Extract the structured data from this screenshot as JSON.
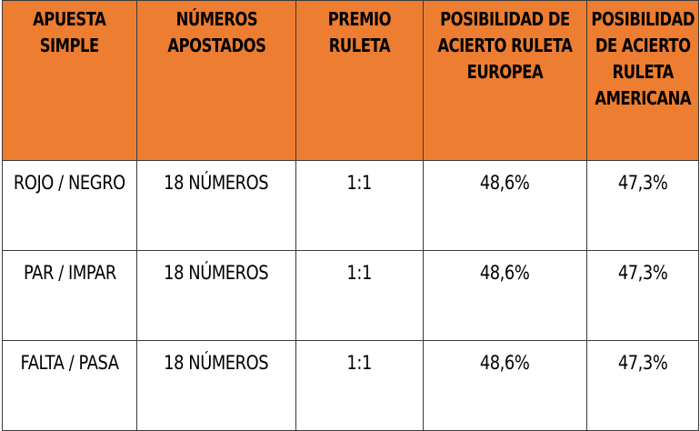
{
  "table": {
    "headers": [
      "APUESTA SIMPLE",
      "NÚMEROS APOSTADOS",
      "PREMIO RULETA",
      "POSIBILIDAD DE ACIERTO RULETA EUROPEA",
      "POSIBILIDAD DE ACIERTO RULETA AMERICANA"
    ],
    "rows": [
      [
        "ROJO / NEGRO",
        "18 NÚMEROS",
        "1:1",
        "48,6%",
        "47,3%"
      ],
      [
        "PAR / IMPAR",
        "18 NÚMEROS",
        "1:1",
        "48,6%",
        "47,3%"
      ],
      [
        "FALTA / PASA",
        "18 NÚMEROS",
        "1:1",
        "48,6%",
        "47,3%"
      ]
    ],
    "colors": {
      "header_background": "#ed7d31",
      "border": "#3a3a3a",
      "body_background": "#ffffff"
    }
  }
}
